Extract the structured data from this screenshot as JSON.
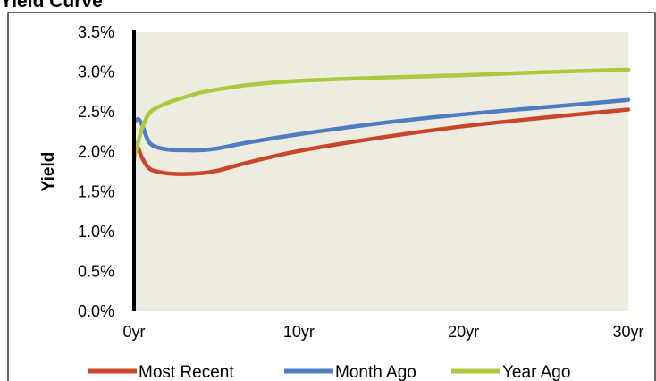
{
  "chart_data": {
    "type": "line",
    "title": "Yield Curve",
    "xlabel": "",
    "ylabel": "Yield",
    "xlim": [
      0,
      30
    ],
    "ylim": [
      0,
      3.5
    ],
    "x_ticks": [
      0,
      10,
      20,
      30
    ],
    "x_tick_labels": [
      "0yr",
      "10yr",
      "20yr",
      "30yr"
    ],
    "y_ticks": [
      0,
      0.5,
      1.0,
      1.5,
      2.0,
      2.5,
      3.0,
      3.5
    ],
    "y_tick_labels": [
      "0.0%",
      "0.5%",
      "1.0%",
      "1.5%",
      "2.0%",
      "2.5%",
      "3.0%",
      "3.5%"
    ],
    "legend_position": "bottom",
    "plot_background": "#eeece1",
    "series": [
      {
        "name": "Most Recent",
        "color": "#c8472a",
        "x": [
          0,
          0.25,
          0.5,
          1,
          2,
          3,
          4,
          5,
          7,
          10,
          15,
          20,
          25,
          30
        ],
        "y": [
          2.12,
          2.05,
          1.92,
          1.78,
          1.73,
          1.72,
          1.73,
          1.76,
          1.87,
          2.01,
          2.18,
          2.32,
          2.43,
          2.53
        ]
      },
      {
        "name": "Month Ago",
        "color": "#4f7cc0",
        "x": [
          0,
          0.25,
          0.5,
          1,
          2,
          3,
          4,
          5,
          7,
          10,
          15,
          20,
          25,
          30
        ],
        "y": [
          2.37,
          2.41,
          2.33,
          2.1,
          2.03,
          2.02,
          2.02,
          2.04,
          2.12,
          2.22,
          2.36,
          2.47,
          2.56,
          2.65
        ]
      },
      {
        "name": "Year Ago",
        "color": "#aec83f",
        "x": [
          0,
          0.25,
          0.5,
          1,
          2,
          3,
          4,
          5,
          7,
          10,
          15,
          20,
          25,
          30
        ],
        "y": [
          1.92,
          2.12,
          2.3,
          2.5,
          2.61,
          2.68,
          2.74,
          2.78,
          2.84,
          2.89,
          2.93,
          2.96,
          3.0,
          3.03
        ]
      }
    ]
  }
}
